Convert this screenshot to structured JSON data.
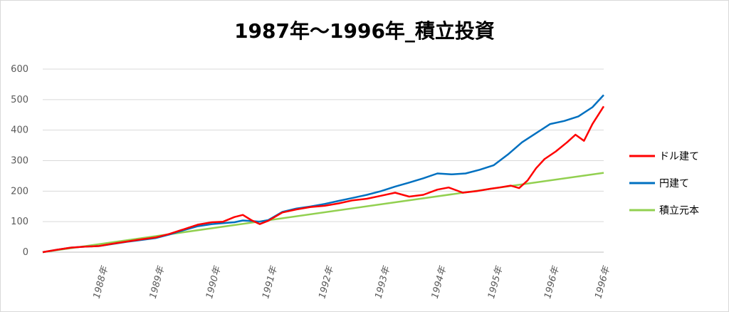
{
  "chart_data": {
    "type": "line",
    "title": "1987年〜1996年_積立投資",
    "ylim": [
      0,
      600
    ],
    "yticks": [
      0,
      100,
      200,
      300,
      400,
      500,
      600
    ],
    "x_tick_labels": [
      "1988年",
      "1989年",
      "1990年",
      "1991年",
      "1992年",
      "1993年",
      "1994年",
      "1995年",
      "1996年",
      "1996年"
    ],
    "x_tick_positions": [
      1988.0,
      1989.0,
      1990.0,
      1991.0,
      1992.0,
      1993.0,
      1994.0,
      1995.0,
      1996.0,
      1996.9
    ],
    "xlim": [
      1987.0,
      1996.95
    ],
    "grid": "horizontal",
    "legend_position": "right",
    "series": [
      {
        "name": "ドル建て",
        "color": "#ff0000",
        "x": [
          1987.0,
          1987.25,
          1987.5,
          1987.75,
          1988.0,
          1988.25,
          1988.5,
          1988.75,
          1989.0,
          1989.25,
          1989.5,
          1989.75,
          1990.0,
          1990.2,
          1990.4,
          1990.55,
          1990.7,
          1990.85,
          1991.0,
          1991.25,
          1991.5,
          1991.75,
          1992.0,
          1992.25,
          1992.5,
          1992.75,
          1993.0,
          1993.25,
          1993.5,
          1993.75,
          1994.0,
          1994.2,
          1994.45,
          1994.7,
          1994.95,
          1995.1,
          1995.3,
          1995.45,
          1995.6,
          1995.75,
          1995.9,
          1996.1,
          1996.3,
          1996.45,
          1996.6,
          1996.75,
          1996.95
        ],
        "values": [
          0,
          8,
          15,
          18,
          20,
          28,
          35,
          42,
          48,
          60,
          75,
          90,
          98,
          100,
          115,
          122,
          105,
          92,
          103,
          130,
          140,
          148,
          152,
          160,
          170,
          175,
          185,
          195,
          182,
          188,
          205,
          212,
          195,
          200,
          208,
          212,
          218,
          210,
          235,
          275,
          305,
          330,
          360,
          385,
          365,
          420,
          478
        ]
      },
      {
        "name": "円建て",
        "color": "#0070c0",
        "x": [
          1987.0,
          1987.25,
          1987.5,
          1987.75,
          1988.0,
          1988.25,
          1988.5,
          1988.75,
          1989.0,
          1989.25,
          1989.5,
          1989.75,
          1990.0,
          1990.2,
          1990.4,
          1990.55,
          1990.7,
          1990.85,
          1991.0,
          1991.25,
          1991.5,
          1991.75,
          1992.0,
          1992.25,
          1992.5,
          1992.75,
          1993.0,
          1993.25,
          1993.5,
          1993.75,
          1994.0,
          1994.25,
          1994.5,
          1994.75,
          1995.0,
          1995.25,
          1995.5,
          1995.75,
          1996.0,
          1996.25,
          1996.5,
          1996.75,
          1996.95
        ],
        "values": [
          0,
          8,
          15,
          18,
          20,
          27,
          34,
          40,
          46,
          58,
          72,
          85,
          92,
          95,
          98,
          104,
          102,
          100,
          105,
          132,
          143,
          150,
          158,
          168,
          178,
          188,
          200,
          215,
          228,
          242,
          258,
          255,
          258,
          270,
          285,
          320,
          360,
          390,
          420,
          430,
          445,
          475,
          515
        ]
      },
      {
        "name": "積立元本",
        "color": "#92d050",
        "x": [
          1987.0,
          1996.95
        ],
        "values": [
          0,
          260
        ]
      }
    ]
  }
}
